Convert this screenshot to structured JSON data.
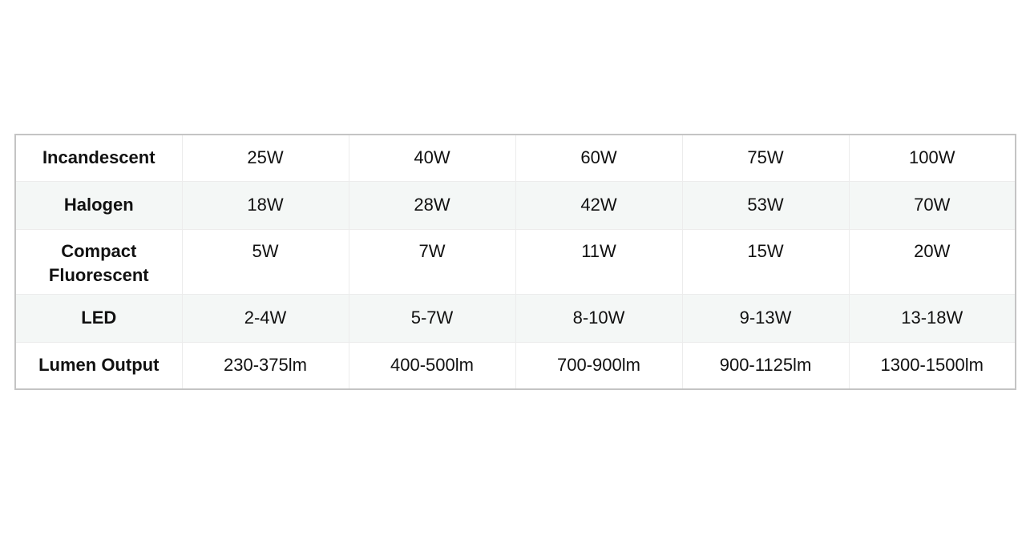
{
  "table": {
    "rows": [
      {
        "label": "Incandescent",
        "values": [
          "25W",
          "40W",
          "60W",
          "75W",
          "100W"
        ]
      },
      {
        "label": "Halogen",
        "values": [
          "18W",
          "28W",
          "42W",
          "53W",
          "70W"
        ]
      },
      {
        "label": "Compact Fluorescent",
        "values": [
          "5W",
          "7W",
          "11W",
          "15W",
          "20W"
        ]
      },
      {
        "label": "LED",
        "values": [
          "2-4W",
          "5-7W",
          "8-10W",
          "9-13W",
          "13-18W"
        ]
      },
      {
        "label": "Lumen Output",
        "values": [
          "230-375lm",
          "400-500lm",
          "700-900lm",
          "900-1125lm",
          "1300-1500lm"
        ]
      }
    ]
  }
}
